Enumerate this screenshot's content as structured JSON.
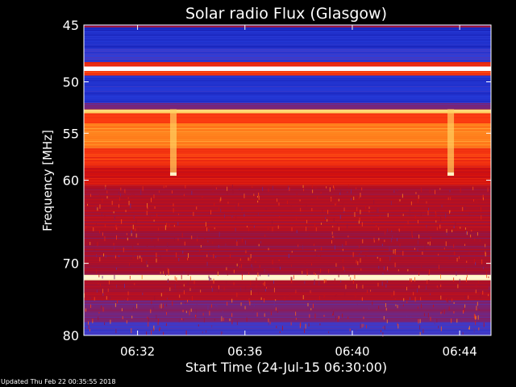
{
  "chart_data": {
    "type": "heatmap",
    "title": "Solar radio Flux (Glasgow)",
    "xlabel": "Start Time (24-Jul-15 06:30:00)",
    "ylabel": "Frequency [MHz]",
    "x_ticks": [
      "06:32",
      "06:36",
      "06:40",
      "06:44"
    ],
    "y_ticks": [
      "45",
      "50",
      "55",
      "60",
      "70",
      "80"
    ],
    "xlim": [
      "06:30:00",
      "06:45:10"
    ],
    "ylim": [
      45,
      80
    ],
    "y_scale": "log",
    "colormap": [
      "#1010a0",
      "#2840e0",
      "#6030a0",
      "#a01030",
      "#d01010",
      "#ff4010",
      "#ff9020",
      "#ffe070",
      "#ffffff"
    ],
    "frequency_bands": [
      {
        "f0": 45.0,
        "f1": 45.2,
        "level": 0.35
      },
      {
        "f0": 45.2,
        "f1": 47.0,
        "level": 0.08
      },
      {
        "f0": 47.0,
        "f1": 48.2,
        "level": 0.15
      },
      {
        "f0": 48.2,
        "f1": 48.6,
        "level": 0.55
      },
      {
        "f0": 48.6,
        "f1": 49.0,
        "level": 1.0
      },
      {
        "f0": 49.0,
        "f1": 49.4,
        "level": 0.6
      },
      {
        "f0": 49.4,
        "f1": 52.0,
        "level": 0.1
      },
      {
        "f0": 52.0,
        "f1": 52.6,
        "level": 0.3
      },
      {
        "f0": 52.6,
        "f1": 53.0,
        "level": 0.85
      },
      {
        "f0": 53.0,
        "f1": 54.0,
        "level": 0.62
      },
      {
        "f0": 54.0,
        "f1": 56.5,
        "level": 0.72
      },
      {
        "f0": 56.5,
        "f1": 58.5,
        "level": 0.6
      },
      {
        "f0": 58.5,
        "f1": 60.5,
        "level": 0.5
      },
      {
        "f0": 60.5,
        "f1": 66.0,
        "level": 0.42
      },
      {
        "f0": 66.0,
        "f1": 71.5,
        "level": 0.38
      },
      {
        "f0": 71.5,
        "f1": 72.2,
        "level": 0.95
      },
      {
        "f0": 72.2,
        "f1": 75.0,
        "level": 0.4
      },
      {
        "f0": 75.0,
        "f1": 78.0,
        "level": 0.3
      },
      {
        "f0": 78.0,
        "f1": 80.0,
        "level": 0.18
      }
    ],
    "bursts": [
      {
        "time": "06:33:20",
        "f0": 52.6,
        "f1": 59.5,
        "level": 0.85
      },
      {
        "time": "06:43:40",
        "f0": 52.6,
        "f1": 59.5,
        "level": 0.85
      }
    ]
  },
  "footer": "Updated Thu Feb 22 00:35:55 2018"
}
